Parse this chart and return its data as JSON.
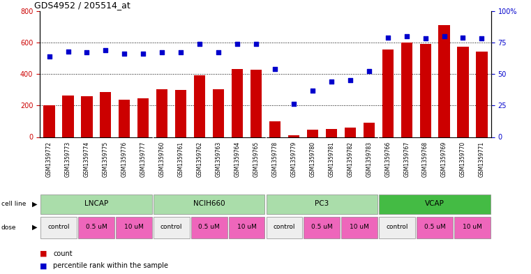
{
  "title": "GDS4952 / 205514_at",
  "samples": [
    "GSM1359772",
    "GSM1359773",
    "GSM1359774",
    "GSM1359775",
    "GSM1359776",
    "GSM1359777",
    "GSM1359760",
    "GSM1359761",
    "GSM1359762",
    "GSM1359763",
    "GSM1359764",
    "GSM1359765",
    "GSM1359778",
    "GSM1359779",
    "GSM1359780",
    "GSM1359781",
    "GSM1359782",
    "GSM1359783",
    "GSM1359766",
    "GSM1359767",
    "GSM1359768",
    "GSM1359769",
    "GSM1359770",
    "GSM1359771"
  ],
  "counts": [
    200,
    262,
    260,
    285,
    235,
    245,
    305,
    300,
    390,
    305,
    430,
    425,
    100,
    10,
    45,
    50,
    60,
    90,
    555,
    600,
    590,
    710,
    575,
    540
  ],
  "percentiles": [
    64,
    68,
    67,
    69,
    66,
    66,
    67,
    67,
    74,
    67,
    74,
    74,
    54,
    26,
    37,
    44,
    45,
    52,
    79,
    80,
    78,
    80,
    79,
    78
  ],
  "cell_lines": [
    {
      "name": "LNCAP",
      "start": 0,
      "end": 6,
      "color": "#aaddaa"
    },
    {
      "name": "NCIH660",
      "start": 6,
      "end": 12,
      "color": "#aaddaa"
    },
    {
      "name": "PC3",
      "start": 12,
      "end": 18,
      "color": "#aaddaa"
    },
    {
      "name": "VCAP",
      "start": 18,
      "end": 24,
      "color": "#44bb44"
    }
  ],
  "dose_labels": [
    "control",
    "0.5 uM",
    "10 uM",
    "control",
    "0.5 uM",
    "10 uM",
    "control",
    "0.5 uM",
    "10 uM",
    "control",
    "0.5 uM",
    "10 uM"
  ],
  "dose_starts": [
    0,
    2,
    4,
    6,
    8,
    10,
    12,
    14,
    16,
    18,
    20,
    22
  ],
  "dose_ends": [
    2,
    4,
    6,
    8,
    10,
    12,
    14,
    16,
    18,
    20,
    22,
    24
  ],
  "dose_colors": [
    "#eeeeee",
    "#ee66bb",
    "#ee66bb",
    "#eeeeee",
    "#ee66bb",
    "#ee66bb",
    "#eeeeee",
    "#ee66bb",
    "#ee66bb",
    "#eeeeee",
    "#ee66bb",
    "#ee66bb"
  ],
  "bar_color": "#cc0000",
  "dot_color": "#0000cc",
  "ylim_left": [
    0,
    800
  ],
  "ylim_right": [
    0,
    100
  ],
  "yticks_left": [
    0,
    200,
    400,
    600,
    800
  ],
  "yticks_right": [
    0,
    25,
    50,
    75,
    100
  ],
  "background_color": "#ffffff",
  "legend_count_color": "#cc0000",
  "legend_pct_color": "#0000cc"
}
